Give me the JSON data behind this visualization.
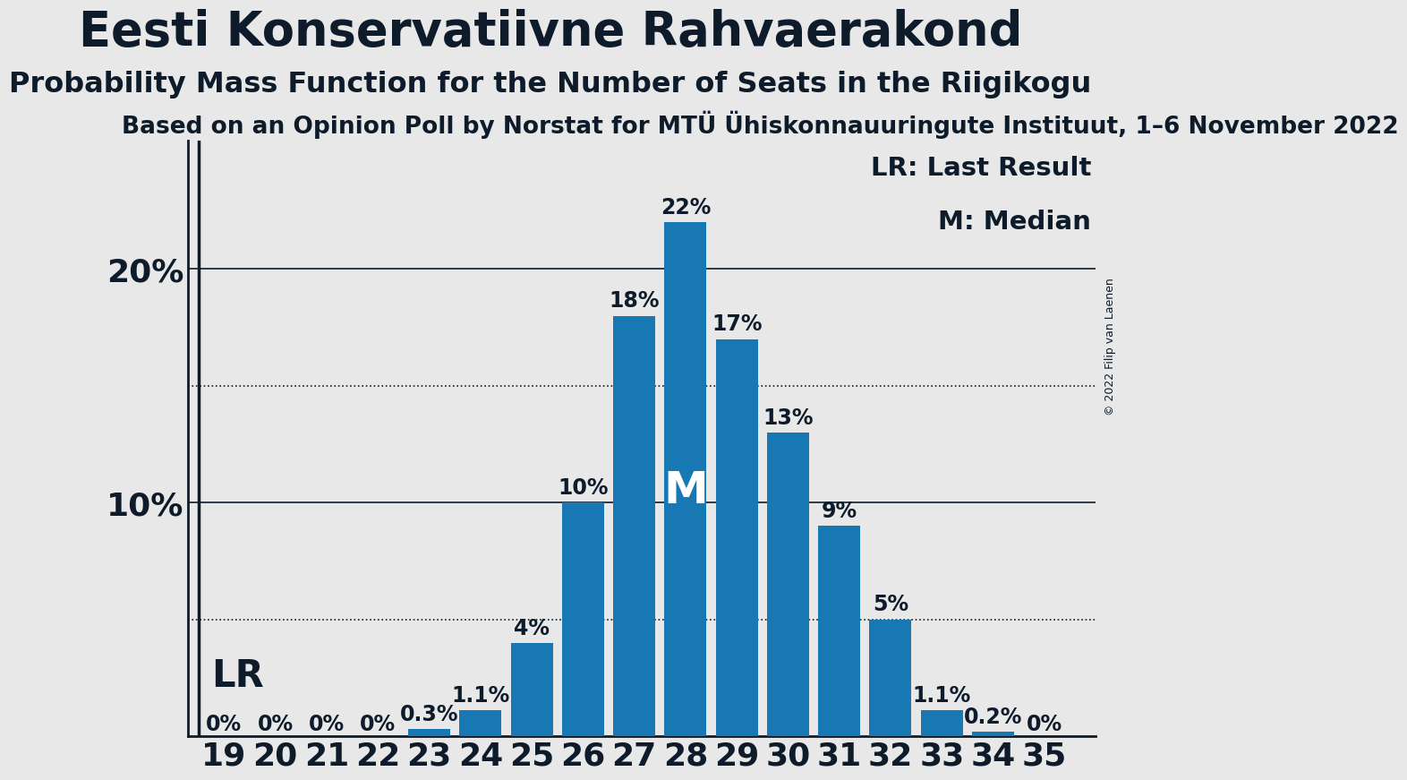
{
  "title": "Eesti Konservatiivne Rahvaerakond",
  "subtitle": "Probability Mass Function for the Number of Seats in the Riigikogu",
  "subsubtitle": "Based on an Opinion Poll by Norstat for MTÜ Ühiskonnauuringute Instituut, 1–6 November 2022",
  "copyright": "© 2022 Filip van Laenen",
  "seats": [
    19,
    20,
    21,
    22,
    23,
    24,
    25,
    26,
    27,
    28,
    29,
    30,
    31,
    32,
    33,
    34,
    35
  ],
  "probabilities": [
    0.0,
    0.0,
    0.0,
    0.0,
    0.003,
    0.011,
    0.04,
    0.1,
    0.18,
    0.22,
    0.17,
    0.13,
    0.09,
    0.05,
    0.011,
    0.002,
    0.0
  ],
  "labels": [
    "0%",
    "0%",
    "0%",
    "0%",
    "0.3%",
    "1.1%",
    "4%",
    "10%",
    "18%",
    "22%",
    "17%",
    "13%",
    "9%",
    "5%",
    "1.1%",
    "0.2%",
    "0%"
  ],
  "bar_color": "#1878b4",
  "background_color": "#e8e8e8",
  "lr_seat": 19,
  "median_seat": 28,
  "yticks": [
    0.1,
    0.2
  ],
  "ytick_labels": [
    "10%",
    "20%"
  ],
  "dotted_lines": [
    0.05,
    0.15
  ],
  "ylim": [
    0,
    0.255
  ],
  "title_fontsize": 38,
  "subtitle_fontsize": 23,
  "subsubtitle_fontsize": 19,
  "legend_fontsize": 21,
  "bar_label_fontsize": 17,
  "axis_label_fontsize": 26,
  "lr_label": "LR",
  "median_label": "M",
  "legend_lr": "LR: Last Result",
  "legend_m": "M: Median",
  "text_color": "#0d1b2a"
}
